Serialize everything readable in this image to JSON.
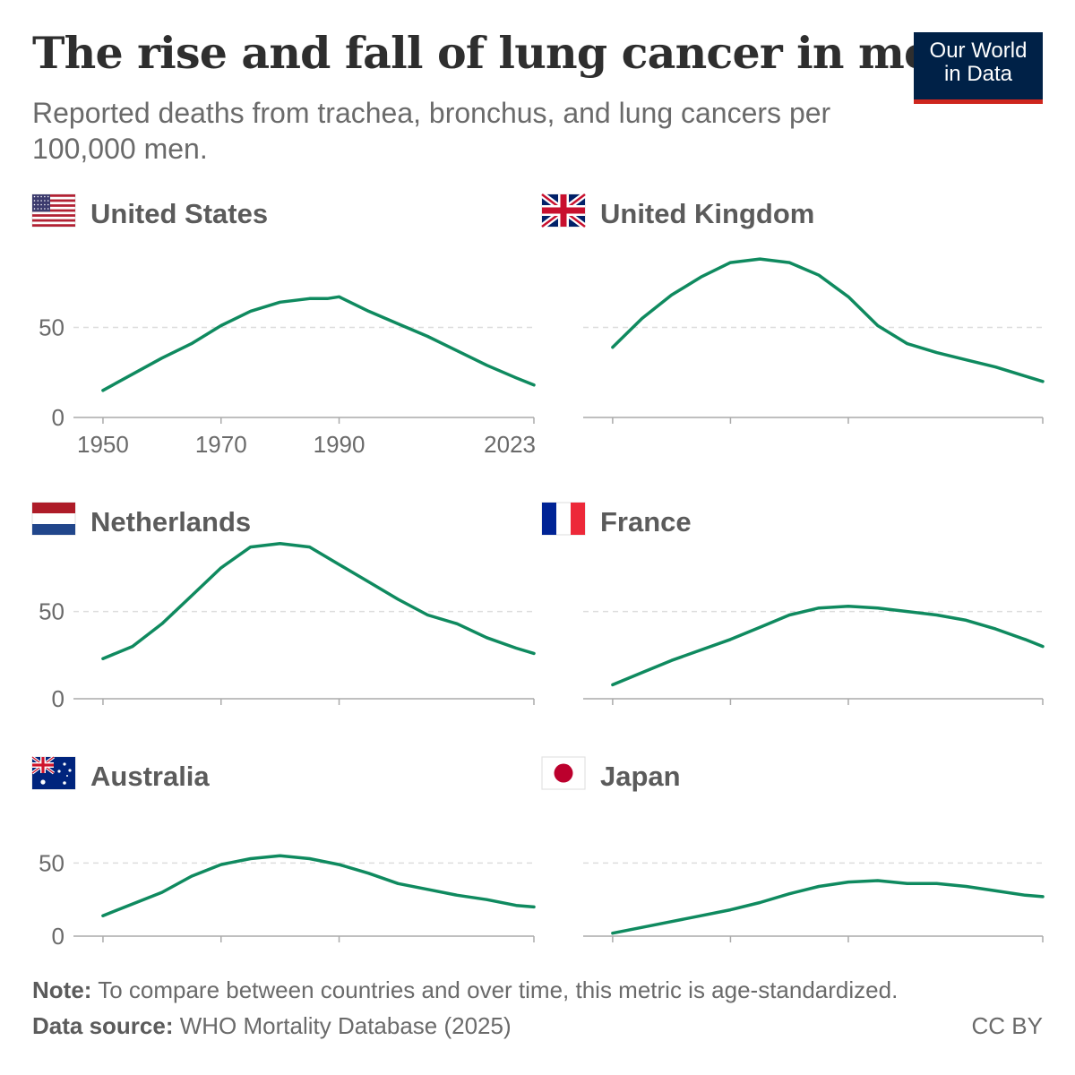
{
  "title": "The rise and fall of lung cancer in men",
  "subtitle": "Reported deaths from trachea, bronchus, and lung cancers per 100,000 men.",
  "logo": {
    "line1": "Our World",
    "line2": "in Data"
  },
  "note": {
    "label": "Note:",
    "text": "To compare between countries and over time, this metric is age-standardized."
  },
  "source": {
    "label": "Data source:",
    "text": "WHO Mortality Database (2025)"
  },
  "license": "CC BY",
  "colors": {
    "line": "#0f8a5f",
    "grid": "#dddddd",
    "axis": "#aaaaaa",
    "label": "#5b5b5b",
    "tick": "#6a6a6a"
  },
  "chart_data": [
    {
      "type": "line",
      "title": "United States",
      "flag": "us-flag-icon",
      "xlim": [
        1945,
        2023
      ],
      "ylim": [
        0,
        95
      ],
      "x_ticks": [
        1950,
        1970,
        1990,
        2023
      ],
      "y_ticks": [
        0,
        50
      ],
      "grid": true,
      "x": [
        1950,
        1955,
        1960,
        1965,
        1970,
        1975,
        1980,
        1985,
        1988,
        1990,
        1995,
        2000,
        2005,
        2010,
        2015,
        2020,
        2023
      ],
      "y": [
        15,
        24,
        33,
        41,
        51,
        59,
        64,
        66,
        66,
        67,
        59,
        52,
        45,
        37,
        29,
        22,
        18
      ]
    },
    {
      "type": "line",
      "title": "United Kingdom",
      "flag": "uk-flag-icon",
      "xlim": [
        1945,
        2023
      ],
      "ylim": [
        0,
        95
      ],
      "x_ticks": [
        1950,
        1970,
        1990,
        2023
      ],
      "y_ticks": [
        0,
        50
      ],
      "grid": true,
      "x": [
        1950,
        1955,
        1960,
        1965,
        1970,
        1975,
        1980,
        1985,
        1990,
        1995,
        2000,
        2005,
        2010,
        2015,
        2020,
        2023
      ],
      "y": [
        39,
        55,
        68,
        78,
        86,
        88,
        86,
        79,
        67,
        51,
        41,
        36,
        32,
        28,
        23,
        20
      ]
    },
    {
      "type": "line",
      "title": "Netherlands",
      "flag": "netherlands-flag-icon",
      "xlim": [
        1945,
        2023
      ],
      "ylim": [
        0,
        95
      ],
      "x_ticks": [
        1950,
        1970,
        1990,
        2023
      ],
      "y_ticks": [
        0,
        50
      ],
      "grid": true,
      "x": [
        1950,
        1955,
        1960,
        1965,
        1970,
        1975,
        1980,
        1985,
        1990,
        1995,
        2000,
        2005,
        2010,
        2015,
        2020,
        2023
      ],
      "y": [
        23,
        30,
        43,
        59,
        75,
        87,
        89,
        87,
        77,
        67,
        57,
        48,
        43,
        35,
        29,
        26
      ]
    },
    {
      "type": "line",
      "title": "France",
      "flag": "france-flag-icon",
      "xlim": [
        1945,
        2023
      ],
      "ylim": [
        0,
        95
      ],
      "x_ticks": [
        1950,
        1970,
        1990,
        2023
      ],
      "y_ticks": [
        0,
        50
      ],
      "grid": true,
      "x": [
        1950,
        1955,
        1960,
        1965,
        1970,
        1975,
        1980,
        1985,
        1990,
        1995,
        2000,
        2005,
        2010,
        2015,
        2020,
        2023
      ],
      "y": [
        8,
        15,
        22,
        28,
        34,
        41,
        48,
        52,
        53,
        52,
        50,
        48,
        45,
        40,
        34,
        30
      ]
    },
    {
      "type": "line",
      "title": "Australia",
      "flag": "australia-flag-icon",
      "xlim": [
        1945,
        2023
      ],
      "ylim": [
        0,
        95
      ],
      "x_ticks": [
        1950,
        1970,
        1990,
        2023
      ],
      "y_ticks": [
        0,
        50
      ],
      "grid": true,
      "x": [
        1950,
        1955,
        1960,
        1965,
        1970,
        1975,
        1980,
        1985,
        1990,
        1995,
        2000,
        2005,
        2010,
        2015,
        2020,
        2023
      ],
      "y": [
        14,
        22,
        30,
        41,
        49,
        53,
        55,
        53,
        49,
        43,
        36,
        32,
        28,
        25,
        21,
        20
      ]
    },
    {
      "type": "line",
      "title": "Japan",
      "flag": "japan-flag-icon",
      "xlim": [
        1945,
        2023
      ],
      "ylim": [
        0,
        95
      ],
      "x_ticks": [
        1950,
        1970,
        1990,
        2023
      ],
      "y_ticks": [
        0,
        50
      ],
      "grid": true,
      "x": [
        1950,
        1955,
        1960,
        1965,
        1970,
        1975,
        1980,
        1985,
        1990,
        1995,
        2000,
        2005,
        2010,
        2015,
        2020,
        2023
      ],
      "y": [
        2,
        6,
        10,
        14,
        18,
        23,
        29,
        34,
        37,
        38,
        36,
        36,
        34,
        31,
        28,
        27
      ]
    }
  ]
}
